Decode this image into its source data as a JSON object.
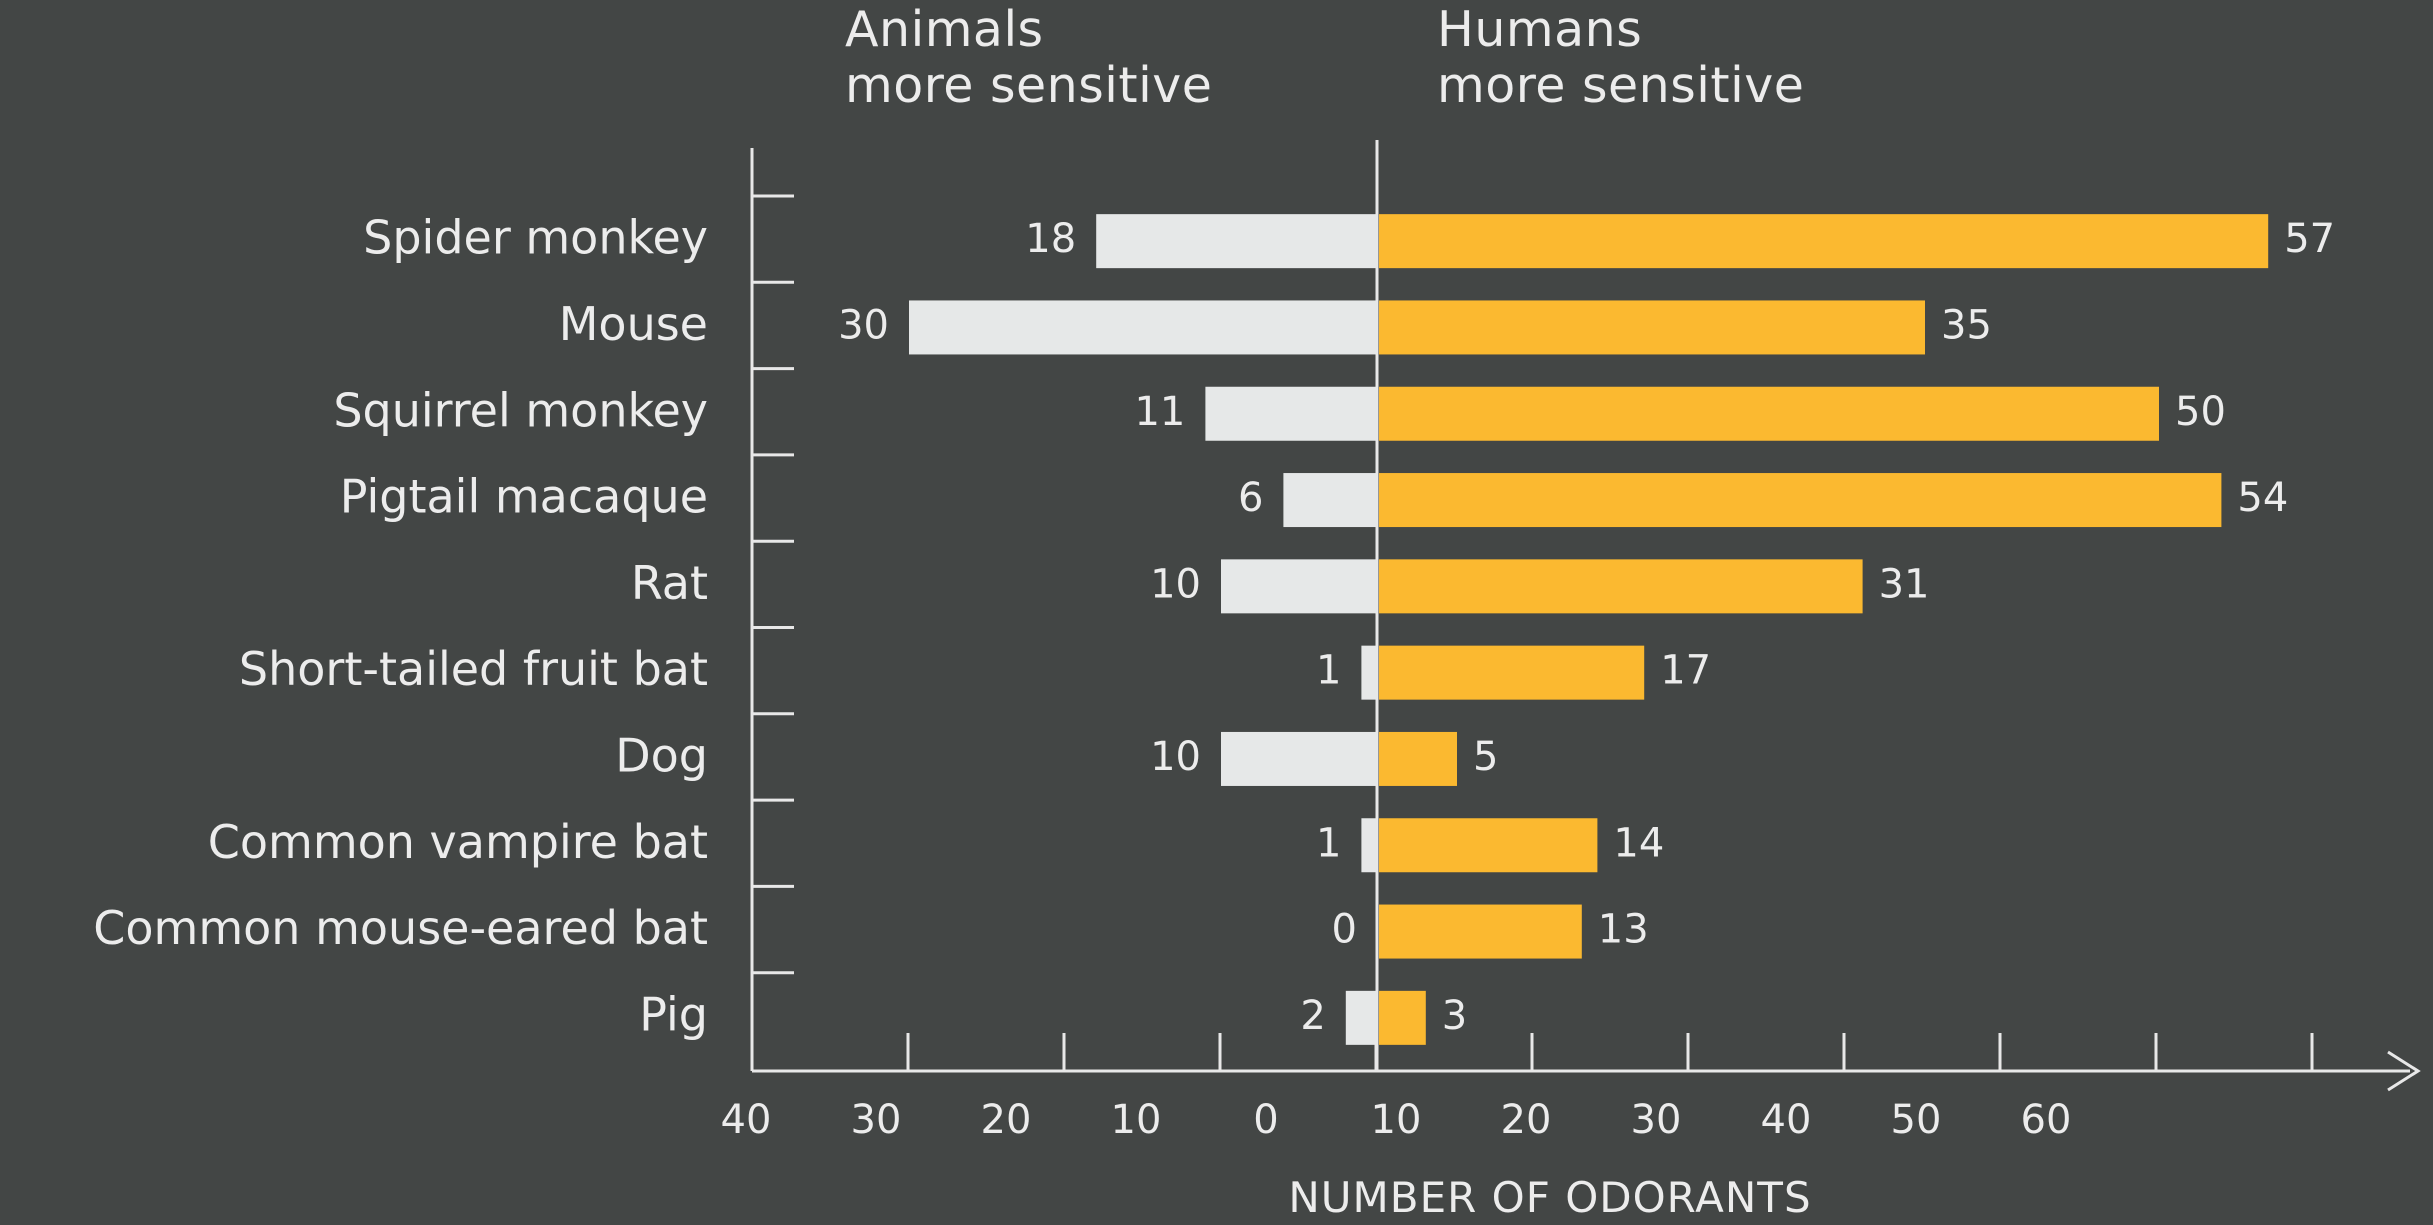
{
  "chart_data": {
    "type": "bar",
    "orientation": "horizontal-diverging",
    "header_left": "Animals\nmore sensitive",
    "header_right": "Humans\nmore sensitive",
    "xlabel": "NUMBER OF ODORANTS",
    "ylabel": "",
    "categories": [
      "Spider monkey",
      "Mouse",
      "Squirrel monkey",
      "Pigtail macaque",
      "Rat",
      "Short-tailed fruit bat",
      "Dog",
      "Common vampire bat",
      "Common mouse-eared bat",
      "Pig"
    ],
    "series": [
      {
        "values": [
          18,
          30,
          11,
          6,
          10,
          1,
          10,
          1,
          0,
          2
        ],
        "color": "#e6e8e8"
      },
      {
        "values": [
          57,
          35,
          50,
          54,
          31,
          17,
          5,
          14,
          13,
          3
        ],
        "color": "#fbb930"
      }
    ],
    "x_tick_labels": [
      "40",
      "30",
      "20",
      "10",
      "0",
      "10",
      "20",
      "30",
      "40",
      "50",
      "60"
    ],
    "grid": false,
    "legend": "none"
  }
}
